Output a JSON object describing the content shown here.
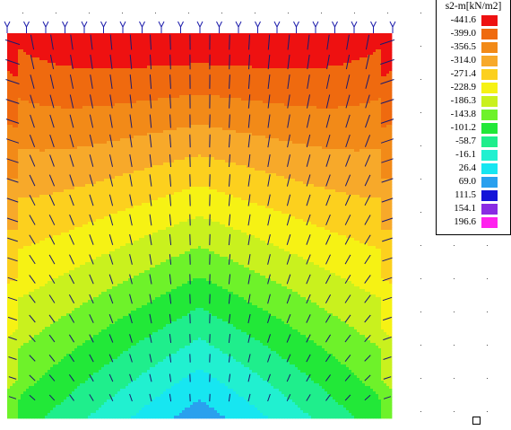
{
  "legend": {
    "title": "s2-m[kN/m2]",
    "entries": [
      {
        "value": "-441.6",
        "color": "#ee1111"
      },
      {
        "value": "-399.0",
        "color": "#ef6a0f"
      },
      {
        "value": "-356.5",
        "color": "#f28a18"
      },
      {
        "value": "-314.0",
        "color": "#f7a92a"
      },
      {
        "value": "-271.4",
        "color": "#fcd01e"
      },
      {
        "value": "-228.9",
        "color": "#f6f214"
      },
      {
        "value": "-186.3",
        "color": "#c9f11e"
      },
      {
        "value": "-143.8",
        "color": "#6ef22a"
      },
      {
        "value": "-101.2",
        "color": "#22e838"
      },
      {
        "value": "-58.7",
        "color": "#1fee8c"
      },
      {
        "value": "-16.1",
        "color": "#21f0d0"
      },
      {
        "value": "26.4",
        "color": "#17e6f1"
      },
      {
        "value": "69.0",
        "color": "#2aa0ee"
      },
      {
        "value": "111.5",
        "color": "#1414d8"
      },
      {
        "value": "154.1",
        "color": "#8a2ce3"
      },
      {
        "value": "196.6",
        "color": "#ff22ee"
      }
    ]
  },
  "plot": {
    "band_colors": [
      "#ee1111",
      "#ef6a0f",
      "#f28a18",
      "#f7a92a",
      "#fcd01e",
      "#f6f214",
      "#c9f11e",
      "#6ef22a",
      "#22e838",
      "#1fee8c",
      "#21f0d0",
      "#17e6f1",
      "#2aa0ee"
    ],
    "vector_color": "#1a1a6e",
    "support_color": "#1a1aaa",
    "grid_dot_color": "#555555"
  }
}
